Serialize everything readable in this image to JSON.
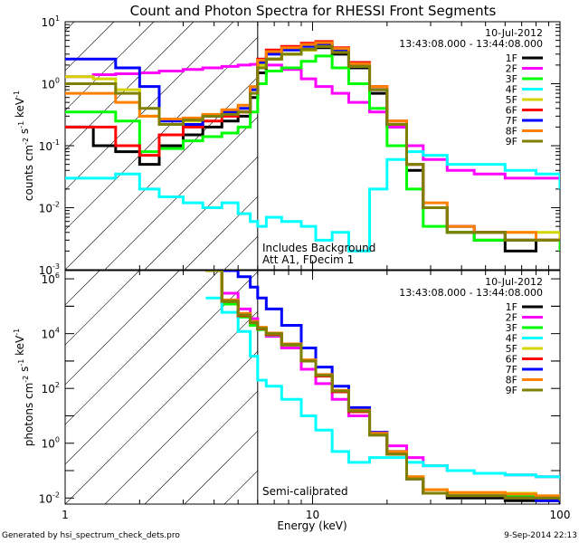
{
  "title": "Count and Photon Spectra for RHESSI Front Segments",
  "footer": {
    "left": "Generated by hsi_spectrum_check_dets.pro",
    "right": "9-Sep-2014 22:13"
  },
  "colors": {
    "1F": "#000000",
    "2F": "#ff00ff",
    "3F": "#00ff00",
    "4F": "#00ffff",
    "5F": "#d4d400",
    "6F": "#ff0000",
    "7F": "#0000ff",
    "8F": "#ff8000",
    "9F": "#808000"
  },
  "chart_data": [
    {
      "type": "line",
      "panel": "top",
      "title": "Count and Photon Spectra for RHESSI Front Segments",
      "xlabel": "Energy (keV)",
      "ylabel": "counts cm^-2 s^-1 keV^-1",
      "xscale": "log",
      "yscale": "log",
      "xlim": [
        1,
        100
      ],
      "ylim": [
        0.001,
        10
      ],
      "ytick_labels": [
        "10^-3",
        "10^-2",
        "10^-1",
        "10^0",
        "10^1"
      ],
      "ytick_values": [
        0.001,
        0.01,
        0.1,
        1,
        10
      ],
      "vertical_marker_keV": 6,
      "annotations": [
        "10-Jul-2012",
        "13:43:08.000 - 13:44:08.000",
        "Includes Background",
        "Att A1, FDecim 1"
      ],
      "legend": {
        "placement": "top-right",
        "entries": [
          "1F",
          "2F",
          "3F",
          "4F",
          "5F",
          "6F",
          "7F",
          "8F",
          "9F"
        ]
      },
      "x": [
        1.0,
        1.3,
        1.6,
        2.0,
        2.4,
        3.0,
        3.6,
        4.3,
        5.0,
        5.6,
        6.0,
        6.5,
        7.5,
        9.0,
        10.3,
        12.0,
        14.0,
        17.0,
        20.0,
        24.0,
        28.0,
        35.0,
        45.0,
        60.0,
        80.0,
        100.0
      ],
      "series": [
        {
          "name": "1F",
          "values": [
            0.2,
            0.1,
            0.08,
            0.05,
            0.1,
            0.15,
            0.2,
            0.25,
            0.3,
            0.6,
            1.5,
            2.5,
            3.0,
            3.5,
            3.8,
            3.0,
            1.8,
            0.7,
            0.2,
            0.04,
            0.01,
            0.004,
            0.003,
            0.002,
            0.003,
            0.002
          ]
        },
        {
          "name": "2F",
          "values": [
            1.3,
            1.4,
            1.45,
            1.5,
            1.6,
            1.7,
            1.8,
            1.9,
            2.0,
            2.05,
            2.1,
            2.0,
            1.7,
            1.2,
            0.9,
            0.7,
            0.5,
            0.35,
            0.2,
            0.1,
            0.06,
            0.04,
            0.035,
            0.03,
            0.03,
            0.025
          ]
        },
        {
          "name": "3F",
          "values": [
            0.35,
            0.35,
            0.25,
            0.08,
            0.09,
            0.12,
            0.14,
            0.16,
            0.2,
            0.35,
            1.0,
            1.6,
            1.8,
            2.3,
            2.8,
            1.8,
            1.0,
            0.4,
            0.1,
            0.02,
            0.005,
            0.004,
            0.003,
            0.003,
            0.003,
            0.002
          ]
        },
        {
          "name": "4F",
          "values": [
            0.03,
            0.03,
            0.035,
            0.02,
            0.015,
            0.012,
            0.01,
            0.012,
            0.008,
            0.006,
            0.005,
            0.007,
            0.006,
            0.005,
            0.003,
            0.004,
            0.002,
            0.02,
            0.06,
            0.08,
            0.07,
            0.05,
            0.05,
            0.04,
            0.035,
            0.02
          ]
        },
        {
          "name": "5F",
          "values": [
            1.3,
            1.2,
            0.8,
            0.3,
            0.25,
            0.25,
            0.3,
            0.35,
            0.4,
            0.8,
            2.0,
            2.5,
            3.0,
            3.5,
            4.0,
            3.2,
            1.9,
            0.8,
            0.25,
            0.05,
            0.01,
            0.005,
            0.004,
            0.004,
            0.004,
            0.003
          ]
        },
        {
          "name": "6F",
          "values": [
            0.2,
            0.2,
            0.1,
            0.07,
            0.15,
            0.2,
            0.25,
            0.3,
            0.35,
            0.8,
            2.5,
            3.5,
            4.0,
            4.5,
            4.8,
            3.8,
            2.2,
            0.9,
            0.25,
            0.05,
            0.01,
            0.005,
            0.004,
            0.003,
            0.003,
            0.003
          ]
        },
        {
          "name": "7F",
          "values": [
            2.5,
            2.5,
            1.8,
            0.9,
            0.25,
            0.22,
            0.3,
            0.35,
            0.4,
            0.8,
            2.2,
            3.0,
            3.5,
            4.0,
            4.3,
            3.5,
            2.0,
            0.8,
            0.22,
            0.05,
            0.01,
            0.005,
            0.004,
            0.003,
            0.003,
            0.003
          ]
        },
        {
          "name": "8F",
          "values": [
            0.7,
            0.7,
            0.5,
            0.3,
            0.27,
            0.28,
            0.32,
            0.38,
            0.45,
            0.9,
            2.4,
            3.3,
            3.8,
            4.3,
            4.6,
            3.7,
            2.1,
            0.9,
            0.25,
            0.05,
            0.012,
            0.005,
            0.004,
            0.004,
            0.003,
            0.003
          ]
        },
        {
          "name": "9F",
          "values": [
            1.0,
            1.0,
            0.7,
            0.4,
            0.22,
            0.26,
            0.3,
            0.32,
            0.35,
            0.7,
            1.8,
            2.5,
            3.0,
            3.6,
            4.0,
            3.2,
            1.9,
            0.8,
            0.22,
            0.05,
            0.01,
            0.004,
            0.004,
            0.003,
            0.003,
            0.003
          ]
        }
      ]
    },
    {
      "type": "line",
      "panel": "bottom",
      "xlabel": "Energy (keV)",
      "ylabel": "photons cm^-2 s^-1 keV^-1",
      "xscale": "log",
      "yscale": "log",
      "xlim": [
        1,
        100
      ],
      "ylim": [
        0.006,
        2000000
      ],
      "xtick_labels": [
        "1",
        "10",
        "100"
      ],
      "xtick_values": [
        1,
        10,
        100
      ],
      "ytick_labels": [
        "10^-2",
        "10^0",
        "10^2",
        "10^4",
        "10^6"
      ],
      "ytick_values": [
        0.01,
        1,
        100,
        10000,
        1000000
      ],
      "vertical_marker_keV": 6,
      "annotations": [
        "10-Jul-2012",
        "13:43:08.000 - 13:44:08.000",
        "Semi-calibrated"
      ],
      "legend": {
        "placement": "top-right",
        "entries": [
          "1F",
          "2F",
          "3F",
          "4F",
          "5F",
          "6F",
          "7F",
          "8F",
          "9F"
        ]
      },
      "x": [
        3.7,
        4.3,
        5.0,
        5.6,
        6.0,
        6.5,
        7.5,
        9.0,
        10.3,
        12.0,
        14.0,
        17.0,
        20.0,
        24.0,
        28.0,
        35.0,
        45.0,
        60.0,
        80.0,
        100.0
      ],
      "series": [
        {
          "name": "1F",
          "values": [
            2000000,
            150000,
            45000,
            25000,
            15000,
            10000,
            4000,
            1000,
            300,
            80,
            15,
            2,
            0.4,
            0.05,
            0.015,
            0.01,
            0.01,
            0.008,
            0.008,
            0.006
          ]
        },
        {
          "name": "2F",
          "values": [
            2000000,
            300000,
            80000,
            35000,
            15000,
            8000,
            3000,
            500,
            150,
            40,
            10,
            2.5,
            0.8,
            0.3,
            0.15,
            0.1,
            0.08,
            0.07,
            0.06,
            0.05
          ]
        },
        {
          "name": "3F",
          "values": [
            2000000,
            120000,
            40000,
            20000,
            14000,
            9000,
            3800,
            1000,
            300,
            80,
            15,
            2,
            0.4,
            0.05,
            0.02,
            0.015,
            0.015,
            0.012,
            0.01,
            0.008
          ]
        },
        {
          "name": "4F",
          "values": [
            200000,
            60000,
            12000,
            1500,
            200,
            120,
            40,
            10,
            3,
            0.5,
            0.2,
            0.3,
            0.3,
            0.2,
            0.15,
            0.1,
            0.08,
            0.07,
            0.06,
            0.05
          ]
        },
        {
          "name": "5F",
          "values": [
            2000000,
            160000,
            50000,
            26000,
            16000,
            10000,
            4000,
            1000,
            300,
            80,
            15,
            2.2,
            0.45,
            0.06,
            0.02,
            0.015,
            0.015,
            0.015,
            0.012,
            0.01
          ]
        },
        {
          "name": "6F",
          "values": [
            2000000,
            150000,
            45000,
            25000,
            15000,
            9500,
            3900,
            1000,
            280,
            75,
            14,
            2,
            0.4,
            0.05,
            0.015,
            0.012,
            0.012,
            0.01,
            0.01,
            0.008
          ]
        },
        {
          "name": "7F",
          "values": [
            2000000,
            2000000,
            1200000,
            500000,
            200000,
            80000,
            20000,
            3000,
            600,
            120,
            20,
            2.5,
            0.5,
            0.05,
            0.015,
            0.012,
            0.012,
            0.01,
            0.008,
            0.008
          ]
        },
        {
          "name": "8F",
          "values": [
            2000000,
            170000,
            55000,
            28000,
            17000,
            10500,
            4200,
            1100,
            320,
            85,
            16,
            2.3,
            0.5,
            0.06,
            0.02,
            0.016,
            0.016,
            0.014,
            0.012,
            0.01
          ]
        },
        {
          "name": "9F",
          "values": [
            2000000,
            155000,
            48000,
            25500,
            15500,
            10000,
            4000,
            1000,
            300,
            80,
            15,
            2,
            0.4,
            0.05,
            0.015,
            0.012,
            0.012,
            0.01,
            0.01,
            0.008
          ]
        }
      ]
    }
  ]
}
